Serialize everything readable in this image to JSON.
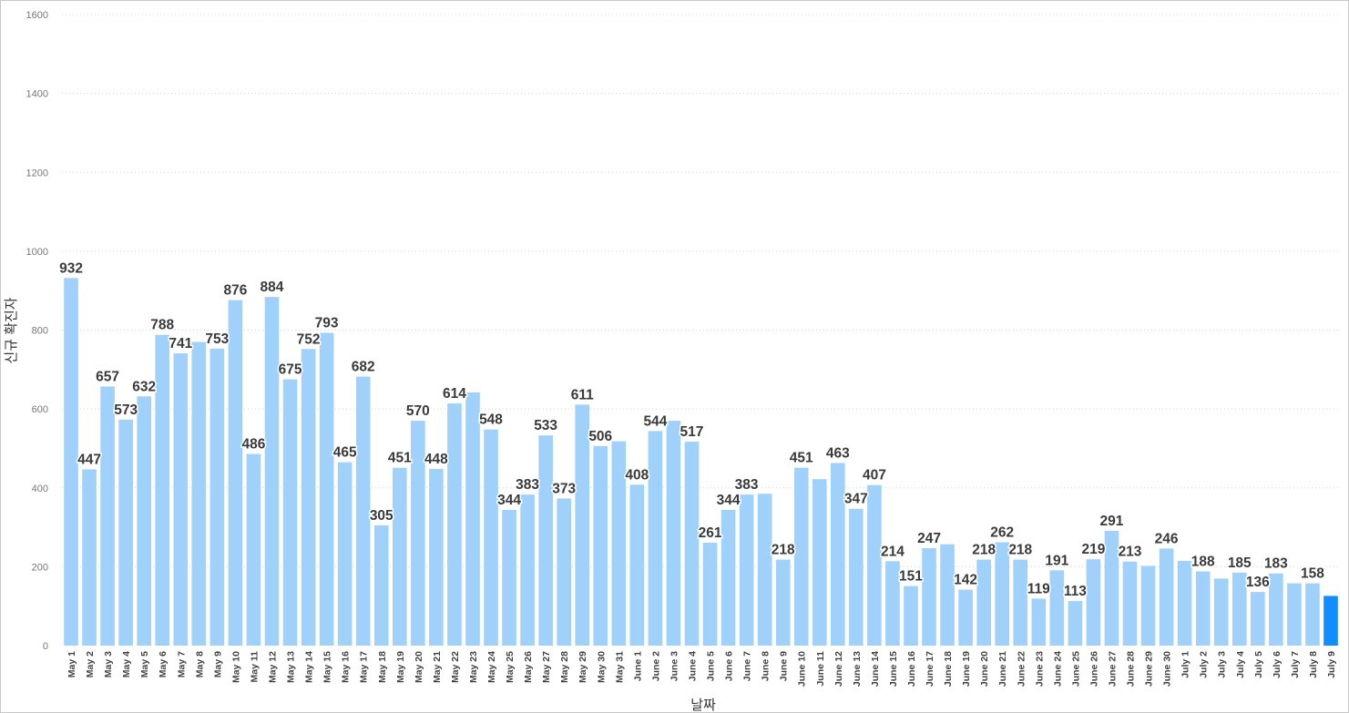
{
  "chart_data": {
    "type": "bar",
    "title": "",
    "xlabel": "날짜",
    "ylabel": "신규 확진자",
    "ylim": [
      0,
      1600
    ],
    "yticks": [
      0,
      200,
      400,
      600,
      800,
      1000,
      1200,
      1400,
      1600
    ],
    "grid": true,
    "colors": {
      "bar": "#a0d1fb",
      "highlight": "#118dff"
    },
    "highlight_category": "July 9",
    "categories": [
      "May 1",
      "May 2",
      "May 3",
      "May 4",
      "May 5",
      "May 6",
      "May 7",
      "May 8",
      "May 9",
      "May 10",
      "May 11",
      "May 12",
      "May 13",
      "May 14",
      "May 15",
      "May 16",
      "May 17",
      "May 18",
      "May 19",
      "May 20",
      "May 21",
      "May 22",
      "May 23",
      "May 24",
      "May 25",
      "May 26",
      "May 27",
      "May 28",
      "May 29",
      "May 30",
      "May 31",
      "June 1",
      "June 2",
      "June 3",
      "June 4",
      "June 5",
      "June 6",
      "June 7",
      "June 8",
      "June 9",
      "June 10",
      "June 11",
      "June 12",
      "June 13",
      "June 14",
      "June 15",
      "June 16",
      "June 17",
      "June 18",
      "June 19",
      "June 20",
      "June 21",
      "June 22",
      "June 23",
      "June 24",
      "June 25",
      "June 26",
      "June 27",
      "June 28",
      "June 29",
      "June 30",
      "July 1",
      "July 2",
      "July 3",
      "July 4",
      "July 5",
      "July 6",
      "July 7",
      "July 8",
      "July 9"
    ],
    "values": [
      932,
      447,
      657,
      573,
      632,
      788,
      741,
      770,
      753,
      876,
      486,
      884,
      675,
      752,
      793,
      465,
      682,
      305,
      451,
      570,
      448,
      614,
      642,
      548,
      344,
      383,
      533,
      373,
      611,
      506,
      518,
      408,
      544,
      570,
      517,
      261,
      344,
      383,
      385,
      218,
      451,
      422,
      463,
      347,
      407,
      214,
      151,
      247,
      257,
      142,
      218,
      262,
      218,
      119,
      191,
      113,
      219,
      291,
      213,
      202,
      246,
      215,
      188,
      170,
      185,
      136,
      183,
      158,
      158,
      126
    ],
    "data_labels": [
      {
        "category": "May 1",
        "text": "932"
      },
      {
        "category": "May 2",
        "text": "447"
      },
      {
        "category": "May 3",
        "text": "657"
      },
      {
        "category": "May 4",
        "text": "573"
      },
      {
        "category": "May 5",
        "text": "632"
      },
      {
        "category": "May 6",
        "text": "788"
      },
      {
        "category": "May 7",
        "text": "741"
      },
      {
        "category": "May 9",
        "text": "753"
      },
      {
        "category": "May 10",
        "text": "876"
      },
      {
        "category": "May 11",
        "text": "486"
      },
      {
        "category": "May 12",
        "text": "884"
      },
      {
        "category": "May 13",
        "text": "675"
      },
      {
        "category": "May 14",
        "text": "752"
      },
      {
        "category": "May 15",
        "text": "793"
      },
      {
        "category": "May 16",
        "text": "465"
      },
      {
        "category": "May 17",
        "text": "682"
      },
      {
        "category": "May 18",
        "text": "305"
      },
      {
        "category": "May 19",
        "text": "451"
      },
      {
        "category": "May 20",
        "text": "570"
      },
      {
        "category": "May 21",
        "text": "448"
      },
      {
        "category": "May 22",
        "text": "614"
      },
      {
        "category": "May 24",
        "text": "548"
      },
      {
        "category": "May 25",
        "text": "344"
      },
      {
        "category": "May 26",
        "text": "383"
      },
      {
        "category": "May 27",
        "text": "533"
      },
      {
        "category": "May 28",
        "text": "373"
      },
      {
        "category": "May 29",
        "text": "611"
      },
      {
        "category": "May 30",
        "text": "506"
      },
      {
        "category": "June 1",
        "text": "408"
      },
      {
        "category": "June 2",
        "text": "544"
      },
      {
        "category": "June 4",
        "text": "517"
      },
      {
        "category": "June 5",
        "text": "261"
      },
      {
        "category": "June 6",
        "text": "344"
      },
      {
        "category": "June 7",
        "text": "383"
      },
      {
        "category": "June 9",
        "text": "218"
      },
      {
        "category": "June 10",
        "text": "451"
      },
      {
        "category": "June 12",
        "text": "463"
      },
      {
        "category": "June 13",
        "text": "347"
      },
      {
        "category": "June 14",
        "text": "407"
      },
      {
        "category": "June 15",
        "text": "214"
      },
      {
        "category": "June 16",
        "text": "151"
      },
      {
        "category": "June 17",
        "text": "247"
      },
      {
        "category": "June 19",
        "text": "142"
      },
      {
        "category": "June 20",
        "text": "218"
      },
      {
        "category": "June 21",
        "text": "262"
      },
      {
        "category": "June 22",
        "text": "218"
      },
      {
        "category": "June 23",
        "text": "119"
      },
      {
        "category": "June 24",
        "text": "191"
      },
      {
        "category": "June 25",
        "text": "113"
      },
      {
        "category": "June 26",
        "text": "219"
      },
      {
        "category": "June 27",
        "text": "291"
      },
      {
        "category": "June 28",
        "text": "213"
      },
      {
        "category": "June 30",
        "text": "246"
      },
      {
        "category": "July 2",
        "text": "188"
      },
      {
        "category": "July 4",
        "text": "185"
      },
      {
        "category": "July 5",
        "text": "136"
      },
      {
        "category": "July 6",
        "text": "183"
      },
      {
        "category": "July 8",
        "text": "158"
      }
    ]
  }
}
